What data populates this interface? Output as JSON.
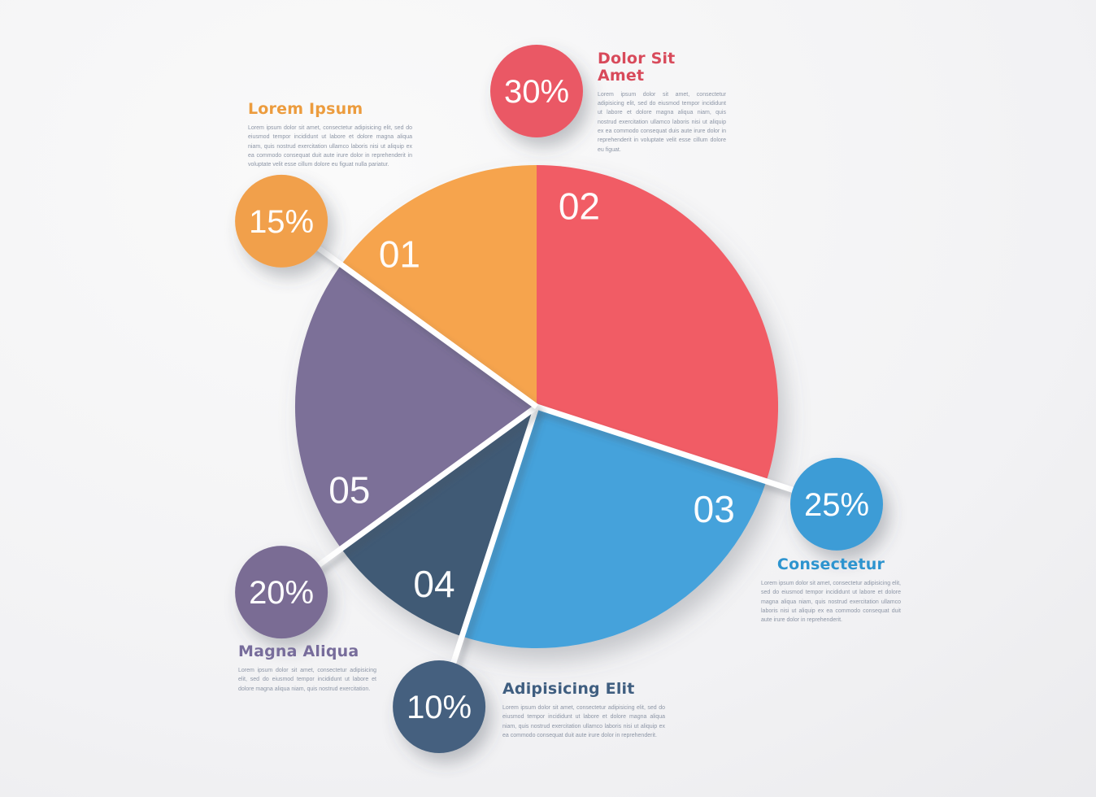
{
  "chart_data": {
    "type": "pie",
    "title": "",
    "unit": "percent",
    "clockwise_from_top": true,
    "start_angle_deg": 0,
    "legend": "none",
    "label_style": "two-digit slice numbers inside wedges, percent badges outside connected by lines at wedge start boundaries",
    "slices": [
      {
        "number": "02",
        "title": "Dolor Sit Amet",
        "value": 30,
        "percent_label": "30%",
        "color": "#f15c65",
        "badge_color": "#ea5965"
      },
      {
        "number": "03",
        "title": "Consectetur",
        "value": 25,
        "percent_label": "25%",
        "color": "#45a2db",
        "badge_color": "#3e9cd6"
      },
      {
        "number": "04",
        "title": "Adipisicing Elit",
        "value": 10,
        "percent_label": "10%",
        "color": "#3f5a74",
        "badge_color": "#44617f"
      },
      {
        "number": "05",
        "title": "Magna Aliqua",
        "value": 20,
        "percent_label": "20%",
        "color": "#7c7098",
        "badge_color": "#7a6c94"
      },
      {
        "number": "01",
        "title": "Lorem Ipsum",
        "value": 15,
        "percent_label": "15%",
        "color": "#f6a44d",
        "badge_color": "#f1a04b"
      }
    ]
  },
  "sections": [
    {
      "id": "01",
      "badge": "15%",
      "title": "Lorem Ipsum",
      "title_color": "#ec9c3e",
      "body": "Lorem ipsum dolor sit amet, consectetur adipisicing elit, sed do eiusmod tempor incididunt ut labore et dolore magna aliqua niam, quis nostrud exercitation ullamco laboris nisi ut aliquip ex ea commodo consequat duit aute irure dolor in reprehenderit in voluptate velit esse cillum dolore eu figuat nulla pariatur."
    },
    {
      "id": "02",
      "badge": "30%",
      "title": "Dolor Sit Amet",
      "title_color": "#d84a5b",
      "body": "Lorem ipsum dolor sit amet, consectetur adipisicing elit, sed do eiusmod tempor incididunt ut labore et dolore magna aliqua niam, quis nostrud exercitation ullamco laboris nisi ut aliquip ex ea commodo consequat duis aute irure dolor in reprehenderit in voluptate velit esse cillum dolore eu figuat."
    },
    {
      "id": "03",
      "badge": "25%",
      "title": "Consectetur",
      "title_color": "#2d94cf",
      "body": "Lorem ipsum dolor sit amet, consectetur adipisicing elit, sed do eiusmod tempor incididunt ut labore et dolore magna aliqua niam, quis nostrud exercitation ullamco laboris nisi ut aliquip ex ea commodo consequat duit aute irure dolor in reprehenderit."
    },
    {
      "id": "04",
      "badge": "10%",
      "title": "Adipisicing Elit",
      "title_color": "#3f5e80",
      "body": "Lorem ipsum dolor sit amet, consectetur adipisicing elit, sed do eiusmod tempor incididunt ut labore et dolore magna aliqua niam, quis nostrud exercitation ullamco laboris nisi ut aliquip ex ea commodo consequat duit aute irure dolor in reprehenderit."
    },
    {
      "id": "05",
      "badge": "20%",
      "title": "Magna Aliqua",
      "title_color": "#776c9b",
      "body": "Lorem ipsum dolor sit amet, consectetur adipisicing elit, sed do eiusmod tempor incididunt ut labore et dolore magna aliqua niam, quis nostrud exercitation."
    }
  ],
  "colors": {
    "background_center": "#fafafa",
    "background_edge": "#e7e7ea",
    "connector_line": "#ffffff",
    "slice_number_text": "#ffffff",
    "badge_text": "#ffffff",
    "body_text": "#8d96a6"
  }
}
